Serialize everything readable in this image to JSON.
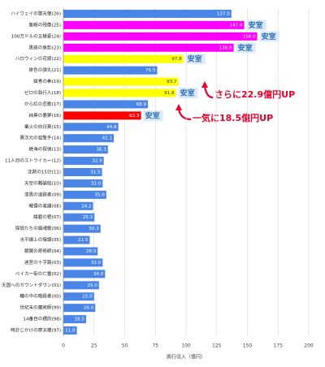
{
  "chart_data": {
    "type": "barh",
    "categories": [
      "ハイウェイの堕天使(26)",
      "隻眼の残像(25)",
      "100万ドルの五稜星(24)",
      "黒鉄の魚影(23)",
      "ハロウィンの花嫁(22)",
      "緋色の弾丸(21)",
      "紺青の拳(19)",
      "ゼロの執行人(18)",
      "から紅の恋歌(17)",
      "純黒の悪夢(16)",
      "業火の向日葵(15)",
      "異次元の狙撃手(14)",
      "絶海の探偵(13)",
      "11人目のストライカー(12)",
      "沈黙の15分(11)",
      "天空の難破船(10)",
      "漆黒の追跡者(09)",
      "戦慄の楽譜(08)",
      "紺碧の棺(07)",
      "探偵たちの鎮魂歌(06)",
      "水平線上の陰謀(05)",
      "銀翼の奇術師(04)",
      "迷宮の十字路(03)",
      "ベイカー街の亡霊(02)",
      "天国へのカウントダウン(01)",
      "瞳の中の暗殺者(00)",
      "世紀末の魔術師(99)",
      "14番目の標的(98)",
      "時計じかけの摩天楼(97)"
    ],
    "values": [
      137.0,
      147.4,
      158.0,
      138.8,
      97.8,
      76.5,
      93.7,
      91.8,
      68.9,
      63.3,
      44.8,
      41.1,
      36.3,
      32.9,
      31.5,
      32.0,
      35.0,
      24.2,
      25.3,
      30.3,
      21.5,
      28.0,
      32.0,
      34.0,
      29.0,
      25.0,
      26.0,
      18.5,
      11.0
    ],
    "value_labels": [
      "137.0",
      "147.4",
      "158.0",
      "138.8",
      "97.8",
      "76.5",
      "93.7",
      "91.8",
      "68.9",
      "63.3",
      "44.8",
      "41.1",
      "36.3",
      "32.9",
      "31.5",
      "32.0",
      "35.0",
      "24.2",
      "25.3",
      "30.3",
      "21.5",
      "28.0",
      "32.0",
      "34.0",
      "29.0",
      "25.0",
      "26.0",
      "18.5",
      "11.0"
    ],
    "colors": [
      "#4a86e8",
      "#ff00ff",
      "#ff00ff",
      "#ff00ff",
      "#ffff00",
      "#4a86e8",
      "#ffff00",
      "#ffff00",
      "#4a86e8",
      "#ff0000",
      "#4a86e8",
      "#4a86e8",
      "#4a86e8",
      "#4a86e8",
      "#4a86e8",
      "#4a86e8",
      "#4a86e8",
      "#4a86e8",
      "#4a86e8",
      "#4a86e8",
      "#4a86e8",
      "#4a86e8",
      "#4a86e8",
      "#4a86e8",
      "#4a86e8",
      "#4a86e8",
      "#4a86e8",
      "#4a86e8",
      "#4a86e8"
    ],
    "badges": [
      null,
      "安室",
      "安室",
      "安室",
      "安室",
      null,
      null,
      "安室",
      null,
      "安室",
      null,
      null,
      null,
      null,
      null,
      null,
      null,
      null,
      null,
      null,
      null,
      null,
      null,
      null,
      null,
      null,
      null,
      null,
      null
    ],
    "xlabel": "興行収入（億円）",
    "xlim": [
      0,
      200
    ],
    "xticks": [
      0,
      25,
      50,
      75,
      100,
      125,
      150,
      175,
      200
    ],
    "grid": true,
    "annotations": [
      "さらに22.9億円UP",
      "一気に18.5億円UP"
    ]
  }
}
